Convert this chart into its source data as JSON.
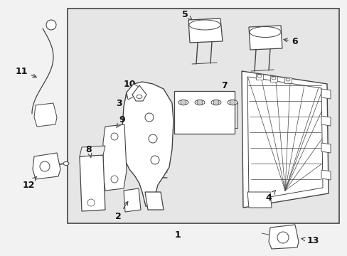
{
  "bg_color": "#f2f2f2",
  "box_bg": "#e8e8e8",
  "line_color": "#444444",
  "label_color": "#111111",
  "fig_width": 4.89,
  "fig_height": 3.6,
  "dpi": 100
}
